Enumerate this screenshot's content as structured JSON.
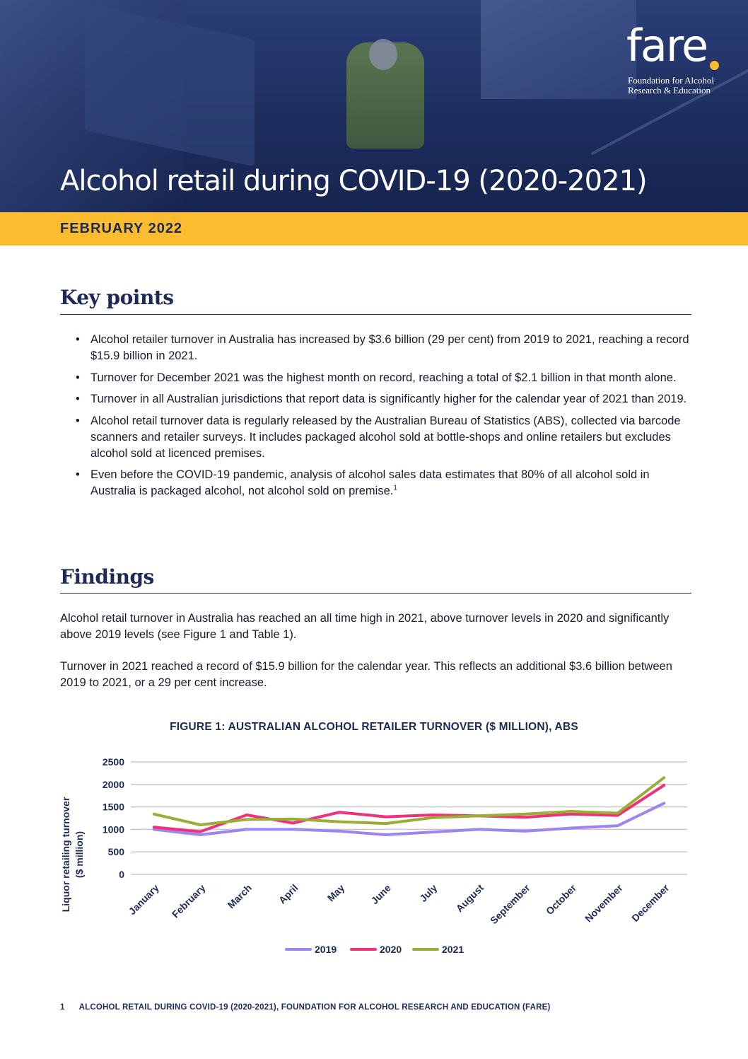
{
  "header": {
    "title": "Alcohol retail during COVID-19 (2020-2021)",
    "date": "FEBRUARY 2022",
    "logo": {
      "word": "fare",
      "subtitle_line1": "Foundation for Alcohol",
      "subtitle_line2": "Research & Education",
      "dot_color": "#f9bd31"
    }
  },
  "colors": {
    "navy": "#1d2a57",
    "yellow": "#fbbd2f"
  },
  "key_points": {
    "heading": "Key points",
    "items": [
      "Alcohol retailer turnover in Australia has increased by $3.6 billion (29 per cent) from 2019 to 2021, reaching a record $15.9 billion in 2021.",
      "Turnover for December 2021 was the highest month on record, reaching a total of $2.1 billion in that month alone.",
      "Turnover in all Australian jurisdictions that report data is significantly higher for the calendar year of 2021 than 2019.",
      "Alcohol retail turnover data is regularly released by the Australian Bureau of Statistics (ABS), collected via barcode scanners and retailer surveys. It includes packaged alcohol sold at bottle-shops and online retailers but excludes alcohol sold at licenced premises.",
      "Even before the COVID-19 pandemic, analysis of alcohol sales data estimates that 80% of all alcohol sold in Australia is packaged alcohol, not alcohol sold on premise."
    ],
    "footnote_marker": "1"
  },
  "findings": {
    "heading": "Findings",
    "paragraphs": [
      "Alcohol retail turnover in Australia has reached an all time high in 2021, above turnover levels in 2020 and significantly above 2019 levels (see Figure 1 and Table 1).",
      "Turnover in 2021 reached a record of $15.9 billion for the calendar year. This reflects an additional $3.6 billion between 2019 to 2021, or a 29 per cent increase."
    ]
  },
  "chart_data": {
    "type": "line",
    "title": "FIGURE 1: AUSTRALIAN ALCOHOL RETAILER TURNOVER ($ MILLION), ABS",
    "ylabel_line1": "Liquor retailing turnover",
    "ylabel_line2": "($ million)",
    "xlabel": "",
    "ylim": [
      0,
      2500
    ],
    "yticks": [
      0,
      500,
      1000,
      1500,
      2000,
      2500
    ],
    "grid": true,
    "legend_position": "bottom",
    "categories": [
      "January",
      "February",
      "March",
      "April",
      "May",
      "June",
      "July",
      "August",
      "September",
      "October",
      "November",
      "December"
    ],
    "series": [
      {
        "name": "2019",
        "color": "#9d84f0",
        "values": [
          1000,
          880,
          1000,
          1000,
          960,
          880,
          940,
          1000,
          960,
          1030,
          1080,
          1580
        ]
      },
      {
        "name": "2020",
        "color": "#f0307a",
        "values": [
          1050,
          950,
          1320,
          1140,
          1380,
          1280,
          1320,
          1300,
          1270,
          1340,
          1310,
          1980
        ]
      },
      {
        "name": "2021",
        "color": "#9aae36",
        "values": [
          1340,
          1100,
          1220,
          1230,
          1170,
          1130,
          1260,
          1300,
          1340,
          1400,
          1360,
          2150
        ]
      }
    ]
  },
  "footer": {
    "page_number": "1",
    "text": "ALCOHOL RETAIL DURING COVID-19 (2020-2021), FOUNDATION FOR ALCOHOL RESEARCH AND EDUCATION (FARE)"
  }
}
